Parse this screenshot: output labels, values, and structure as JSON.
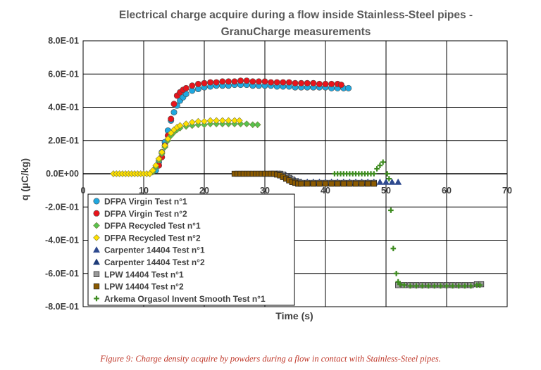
{
  "chart_data": {
    "type": "scatter",
    "title_lines": [
      "Electrical charge acquire during a flow inside Stainless-Steel pipes -",
      "GranuCharge measurements"
    ],
    "xlabel": "Time (s)",
    "ylabel": "q (µC/kg)",
    "xlim": [
      0,
      70
    ],
    "ylim": [
      -0.8,
      0.8
    ],
    "x_ticks": [
      0,
      10,
      20,
      30,
      40,
      50,
      60,
      70
    ],
    "y_ticks": [
      0.8,
      0.6,
      0.4,
      0.2,
      0.0,
      -0.2,
      -0.4,
      -0.6,
      -0.8
    ],
    "y_tick_labels": [
      "8.0E-01",
      "6.0E-01",
      "4.0E-01",
      "2.0E-01",
      "0.0E+00",
      "-2.0E-01",
      "-4.0E-01",
      "-6.0E-01",
      "-8.0E-01"
    ],
    "grid": true,
    "legend_position": "bottom-left",
    "series": [
      {
        "name": "DFPA Virgin Test n°1",
        "marker": "circle",
        "color": "#1fa8e0",
        "points": [
          [
            12.0,
            0.02
          ],
          [
            12.5,
            0.07
          ],
          [
            13.0,
            0.13
          ],
          [
            13.5,
            0.19
          ],
          [
            14.0,
            0.26
          ],
          [
            14.5,
            0.32
          ],
          [
            15.0,
            0.37
          ],
          [
            15.5,
            0.41
          ],
          [
            16.0,
            0.44
          ],
          [
            16.5,
            0.46
          ],
          [
            17.0,
            0.48
          ],
          [
            18.0,
            0.5
          ],
          [
            19.0,
            0.51
          ],
          [
            20.0,
            0.52
          ],
          [
            21.0,
            0.525
          ],
          [
            22.0,
            0.53
          ],
          [
            23.0,
            0.53
          ],
          [
            24.0,
            0.53
          ],
          [
            25.0,
            0.535
          ],
          [
            26.0,
            0.535
          ],
          [
            27.0,
            0.535
          ],
          [
            28.0,
            0.53
          ],
          [
            29.0,
            0.53
          ],
          [
            30.0,
            0.53
          ],
          [
            31.0,
            0.53
          ],
          [
            32.0,
            0.525
          ],
          [
            33.0,
            0.525
          ],
          [
            34.0,
            0.525
          ],
          [
            35.0,
            0.52
          ],
          [
            36.0,
            0.52
          ],
          [
            37.0,
            0.52
          ],
          [
            38.0,
            0.52
          ],
          [
            39.0,
            0.52
          ],
          [
            40.0,
            0.52
          ],
          [
            41.0,
            0.515
          ],
          [
            42.0,
            0.515
          ],
          [
            43.0,
            0.515
          ],
          [
            43.8,
            0.515
          ]
        ]
      },
      {
        "name": "DFPA Virgin Test n°2",
        "marker": "circle",
        "color": "#e8141c",
        "points": [
          [
            12.5,
            0.05
          ],
          [
            13.0,
            0.1
          ],
          [
            13.5,
            0.17
          ],
          [
            14.0,
            0.23
          ],
          [
            14.5,
            0.33
          ],
          [
            15.0,
            0.42
          ],
          [
            15.5,
            0.47
          ],
          [
            16.0,
            0.49
          ],
          [
            16.5,
            0.505
          ],
          [
            17.0,
            0.515
          ],
          [
            18.0,
            0.53
          ],
          [
            19.0,
            0.54
          ],
          [
            20.0,
            0.545
          ],
          [
            21.0,
            0.55
          ],
          [
            22.0,
            0.55
          ],
          [
            23.0,
            0.555
          ],
          [
            24.0,
            0.555
          ],
          [
            25.0,
            0.555
          ],
          [
            26.0,
            0.56
          ],
          [
            27.0,
            0.56
          ],
          [
            28.0,
            0.555
          ],
          [
            29.0,
            0.555
          ],
          [
            30.0,
            0.555
          ],
          [
            31.0,
            0.55
          ],
          [
            32.0,
            0.55
          ],
          [
            33.0,
            0.55
          ],
          [
            34.0,
            0.55
          ],
          [
            35.0,
            0.545
          ],
          [
            36.0,
            0.545
          ],
          [
            37.0,
            0.545
          ],
          [
            38.0,
            0.545
          ],
          [
            39.0,
            0.54
          ],
          [
            40.0,
            0.54
          ],
          [
            41.0,
            0.54
          ],
          [
            42.0,
            0.54
          ],
          [
            42.6,
            0.535
          ]
        ]
      },
      {
        "name": "DFPA Recycled Test n°1",
        "marker": "diamond",
        "color": "#58c24e",
        "points": [
          [
            11.0,
            0.0
          ],
          [
            11.5,
            0.01
          ],
          [
            12.0,
            0.04
          ],
          [
            12.5,
            0.08
          ],
          [
            13.0,
            0.12
          ],
          [
            13.5,
            0.16
          ],
          [
            14.0,
            0.2
          ],
          [
            14.5,
            0.23
          ],
          [
            15.0,
            0.25
          ],
          [
            15.5,
            0.265
          ],
          [
            16.0,
            0.275
          ],
          [
            17.0,
            0.285
          ],
          [
            18.0,
            0.29
          ],
          [
            19.0,
            0.295
          ],
          [
            20.0,
            0.295
          ],
          [
            21.0,
            0.3
          ],
          [
            22.0,
            0.3
          ],
          [
            23.0,
            0.3
          ],
          [
            24.0,
            0.3
          ],
          [
            25.0,
            0.3
          ],
          [
            26.0,
            0.3
          ],
          [
            27.0,
            0.3
          ],
          [
            28.0,
            0.295
          ],
          [
            28.8,
            0.295
          ]
        ]
      },
      {
        "name": "DFPA Recycled Test n°2",
        "marker": "diamond",
        "color": "#ffe000",
        "points": [
          [
            5.0,
            0.0
          ],
          [
            5.5,
            0.0
          ],
          [
            6.0,
            0.0
          ],
          [
            6.5,
            0.0
          ],
          [
            7.0,
            0.0
          ],
          [
            7.5,
            0.0
          ],
          [
            8.0,
            0.0
          ],
          [
            8.5,
            0.0
          ],
          [
            9.0,
            0.0
          ],
          [
            9.5,
            0.0
          ],
          [
            10.0,
            0.0
          ],
          [
            10.5,
            0.0
          ],
          [
            11.0,
            0.0
          ],
          [
            11.5,
            0.02
          ],
          [
            12.0,
            0.05
          ],
          [
            12.5,
            0.09
          ],
          [
            13.0,
            0.13
          ],
          [
            13.5,
            0.17
          ],
          [
            14.0,
            0.21
          ],
          [
            14.5,
            0.245
          ],
          [
            15.0,
            0.265
          ],
          [
            15.5,
            0.28
          ],
          [
            16.0,
            0.29
          ],
          [
            17.0,
            0.3
          ],
          [
            18.0,
            0.31
          ],
          [
            19.0,
            0.315
          ],
          [
            20.0,
            0.315
          ],
          [
            21.0,
            0.32
          ],
          [
            22.0,
            0.32
          ],
          [
            23.0,
            0.32
          ],
          [
            24.0,
            0.32
          ],
          [
            25.0,
            0.32
          ],
          [
            25.8,
            0.32
          ]
        ]
      },
      {
        "name": "Carpenter 14404 Test n°1",
        "marker": "triangle",
        "color": "#2e4a8f",
        "points": [
          [
            32.0,
            0.0
          ],
          [
            32.5,
            0.0
          ],
          [
            33.0,
            -0.005
          ],
          [
            33.5,
            -0.01
          ],
          [
            34.0,
            -0.02
          ],
          [
            34.5,
            -0.03
          ],
          [
            35.0,
            -0.04
          ],
          [
            35.5,
            -0.045
          ],
          [
            36.0,
            -0.05
          ],
          [
            37.0,
            -0.05
          ],
          [
            38.0,
            -0.05
          ],
          [
            39.0,
            -0.05
          ],
          [
            40.0,
            -0.05
          ],
          [
            41.0,
            -0.05
          ],
          [
            42.0,
            -0.05
          ],
          [
            43.0,
            -0.05
          ],
          [
            44.0,
            -0.05
          ],
          [
            45.0,
            -0.05
          ],
          [
            46.0,
            -0.05
          ],
          [
            47.0,
            -0.05
          ],
          [
            48.0,
            -0.05
          ],
          [
            49.0,
            -0.05
          ],
          [
            50.0,
            -0.05
          ],
          [
            51.0,
            -0.05
          ],
          [
            52.0,
            -0.05
          ]
        ]
      },
      {
        "name": "Carpenter 14404 Test n°2",
        "marker": "triangle",
        "color": "#1f3d7a",
        "points": [
          [
            36.0,
            -0.055
          ],
          [
            37.0,
            -0.055
          ],
          [
            38.0,
            -0.055
          ],
          [
            39.0,
            -0.055
          ],
          [
            40.0,
            -0.055
          ],
          [
            41.0,
            -0.055
          ],
          [
            42.0,
            -0.055
          ],
          [
            43.0,
            -0.055
          ],
          [
            44.0,
            -0.055
          ],
          [
            45.0,
            -0.055
          ],
          [
            46.0,
            -0.055
          ],
          [
            47.0,
            -0.055
          ],
          [
            48.0,
            -0.055
          ]
        ]
      },
      {
        "name": "LPW 14404 Test n°1",
        "marker": "square",
        "color": "#9a9a9a",
        "points": [
          [
            31.0,
            0.0
          ],
          [
            31.5,
            0.0
          ],
          [
            32.0,
            0.0
          ],
          [
            32.5,
            0.0
          ],
          [
            33.0,
            -0.005
          ],
          [
            33.5,
            -0.015
          ],
          [
            34.0,
            -0.025
          ],
          [
            34.5,
            -0.035
          ],
          [
            35.0,
            -0.045
          ],
          [
            35.5,
            -0.05
          ],
          [
            36.0,
            -0.055
          ],
          [
            37.0,
            -0.055
          ],
          [
            38.0,
            -0.055
          ],
          [
            39.0,
            -0.055
          ],
          [
            40.0,
            -0.055
          ],
          [
            41.0,
            -0.055
          ],
          [
            42.0,
            -0.055
          ],
          [
            43.0,
            -0.055
          ],
          [
            44.0,
            -0.055
          ],
          [
            45.0,
            -0.055
          ],
          [
            46.0,
            -0.055
          ],
          [
            47.0,
            -0.055
          ],
          [
            48.0,
            -0.055
          ],
          [
            52.0,
            -0.67
          ],
          [
            53.0,
            -0.67
          ],
          [
            54.0,
            -0.67
          ],
          [
            55.0,
            -0.67
          ],
          [
            56.0,
            -0.67
          ],
          [
            57.0,
            -0.67
          ],
          [
            58.0,
            -0.67
          ],
          [
            59.0,
            -0.67
          ],
          [
            60.0,
            -0.67
          ],
          [
            61.0,
            -0.67
          ],
          [
            62.0,
            -0.67
          ],
          [
            63.0,
            -0.67
          ],
          [
            64.0,
            -0.67
          ],
          [
            65.0,
            -0.665
          ],
          [
            65.7,
            -0.665
          ]
        ]
      },
      {
        "name": "LPW 14404 Test n°2",
        "marker": "square",
        "color": "#8b5a00",
        "points": [
          [
            25.0,
            0.0
          ],
          [
            25.5,
            0.0
          ],
          [
            26.0,
            0.0
          ],
          [
            26.5,
            0.0
          ],
          [
            27.0,
            0.0
          ],
          [
            27.5,
            0.0
          ],
          [
            28.0,
            0.0
          ],
          [
            28.5,
            0.0
          ],
          [
            29.0,
            0.0
          ],
          [
            29.5,
            0.0
          ],
          [
            30.0,
            0.0
          ],
          [
            30.5,
            0.0
          ],
          [
            31.0,
            0.0
          ],
          [
            31.5,
            0.0
          ],
          [
            32.0,
            -0.005
          ],
          [
            32.5,
            -0.01
          ],
          [
            33.0,
            -0.02
          ],
          [
            33.5,
            -0.03
          ],
          [
            34.0,
            -0.04
          ],
          [
            34.5,
            -0.05
          ],
          [
            35.0,
            -0.055
          ],
          [
            35.5,
            -0.06
          ],
          [
            36.0,
            -0.06
          ],
          [
            37.0,
            -0.06
          ],
          [
            38.0,
            -0.06
          ],
          [
            39.0,
            -0.06
          ],
          [
            40.0,
            -0.06
          ],
          [
            41.0,
            -0.06
          ],
          [
            42.0,
            -0.06
          ],
          [
            43.0,
            -0.06
          ],
          [
            44.0,
            -0.06
          ],
          [
            45.0,
            -0.06
          ],
          [
            46.0,
            -0.06
          ],
          [
            47.0,
            -0.06
          ],
          [
            48.0,
            -0.06
          ]
        ]
      },
      {
        "name": "Arkema Orgasol Invent Smooth Test n°1",
        "marker": "plus",
        "color": "#3c8a1e",
        "points": [
          [
            41.5,
            0.0
          ],
          [
            42.0,
            0.0
          ],
          [
            42.5,
            0.0
          ],
          [
            43.0,
            0.0
          ],
          [
            43.5,
            0.0
          ],
          [
            44.0,
            0.0
          ],
          [
            44.5,
            0.0
          ],
          [
            45.0,
            0.0
          ],
          [
            45.5,
            0.0
          ],
          [
            46.0,
            0.0
          ],
          [
            46.5,
            0.0
          ],
          [
            47.0,
            0.0
          ],
          [
            47.5,
            0.0
          ],
          [
            48.0,
            0.0
          ],
          [
            48.5,
            0.03
          ],
          [
            49.0,
            0.05
          ],
          [
            49.5,
            0.07
          ],
          [
            50.2,
            0.0
          ],
          [
            50.5,
            -0.03
          ],
          [
            50.8,
            -0.22
          ],
          [
            51.2,
            -0.45
          ],
          [
            51.7,
            -0.6
          ],
          [
            52.0,
            -0.65
          ],
          [
            52.3,
            -0.665
          ],
          [
            53.0,
            -0.67
          ],
          [
            54.0,
            -0.675
          ],
          [
            55.0,
            -0.675
          ],
          [
            56.0,
            -0.675
          ],
          [
            57.0,
            -0.675
          ],
          [
            58.0,
            -0.675
          ],
          [
            59.0,
            -0.675
          ],
          [
            60.0,
            -0.675
          ],
          [
            61.0,
            -0.675
          ],
          [
            62.0,
            -0.675
          ],
          [
            63.0,
            -0.675
          ],
          [
            64.0,
            -0.675
          ],
          [
            65.0,
            -0.67
          ],
          [
            65.5,
            -0.67
          ]
        ]
      }
    ]
  },
  "caption": "Figure 9: Charge density acquire by powders during a flow in contact with Stainless-Steel pipes."
}
